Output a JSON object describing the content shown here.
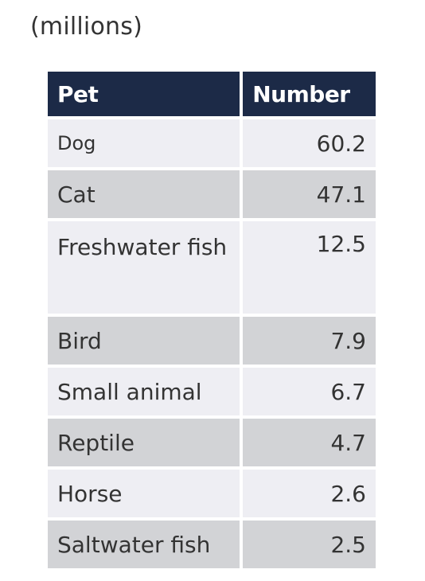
{
  "chart_data": {
    "type": "table",
    "subtitle": "(millions)",
    "columns": [
      "Pet",
      "Number"
    ],
    "rows": [
      {
        "pet": "Dog",
        "number": "60.2"
      },
      {
        "pet": "Cat",
        "number": "47.1"
      },
      {
        "pet": "Freshwater fish",
        "number": "12.5"
      },
      {
        "pet": "Bird",
        "number": "7.9"
      },
      {
        "pet": "Small animal",
        "number": "6.7"
      },
      {
        "pet": "Reptile",
        "number": "4.7"
      },
      {
        "pet": "Horse",
        "number": "2.6"
      },
      {
        "pet": "Saltwater fish",
        "number": "2.5"
      }
    ],
    "colors": {
      "header_bg": "#1c2a47",
      "row_light": "#eeeef3",
      "row_dark": "#d2d3d6"
    }
  }
}
